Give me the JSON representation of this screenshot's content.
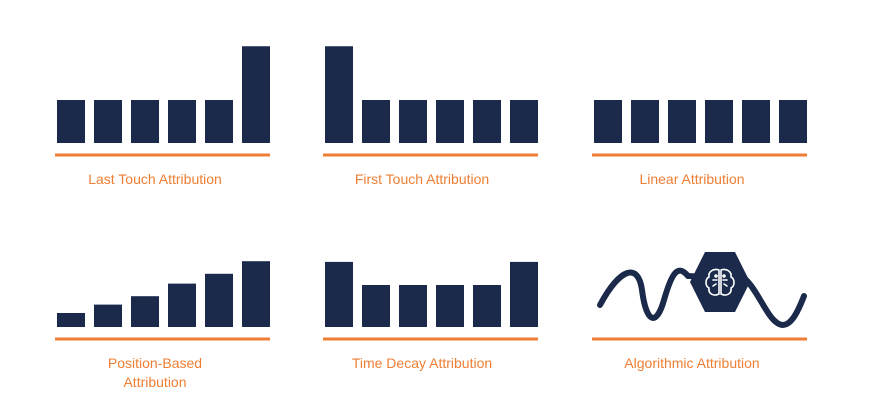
{
  "colors": {
    "bar": "#1b2a4a",
    "accent": "#ee7e33",
    "background": "#ffffff"
  },
  "chart_data": [
    {
      "type": "bar",
      "label": "Last Touch Attribution",
      "values": [
        1,
        1,
        1,
        1,
        1,
        2.25
      ]
    },
    {
      "type": "bar",
      "label": "First Touch Attribution",
      "values": [
        2.25,
        1,
        1,
        1,
        1,
        1
      ]
    },
    {
      "type": "bar",
      "label": "Linear Attribution",
      "values": [
        1,
        1,
        1,
        1,
        1,
        1
      ]
    },
    {
      "type": "bar",
      "label_lines": [
        "Position-Based",
        "Attribution"
      ],
      "values": [
        1,
        1.6,
        2.2,
        3.1,
        3.8,
        4.7
      ]
    },
    {
      "type": "bar",
      "label": "Time Decay Attribution",
      "values": [
        1.55,
        1.0,
        1.0,
        1.0,
        1.0,
        1.55
      ]
    },
    {
      "type": "curve",
      "label": "Algorithmic Attribution",
      "icon": "brain-icon"
    }
  ]
}
